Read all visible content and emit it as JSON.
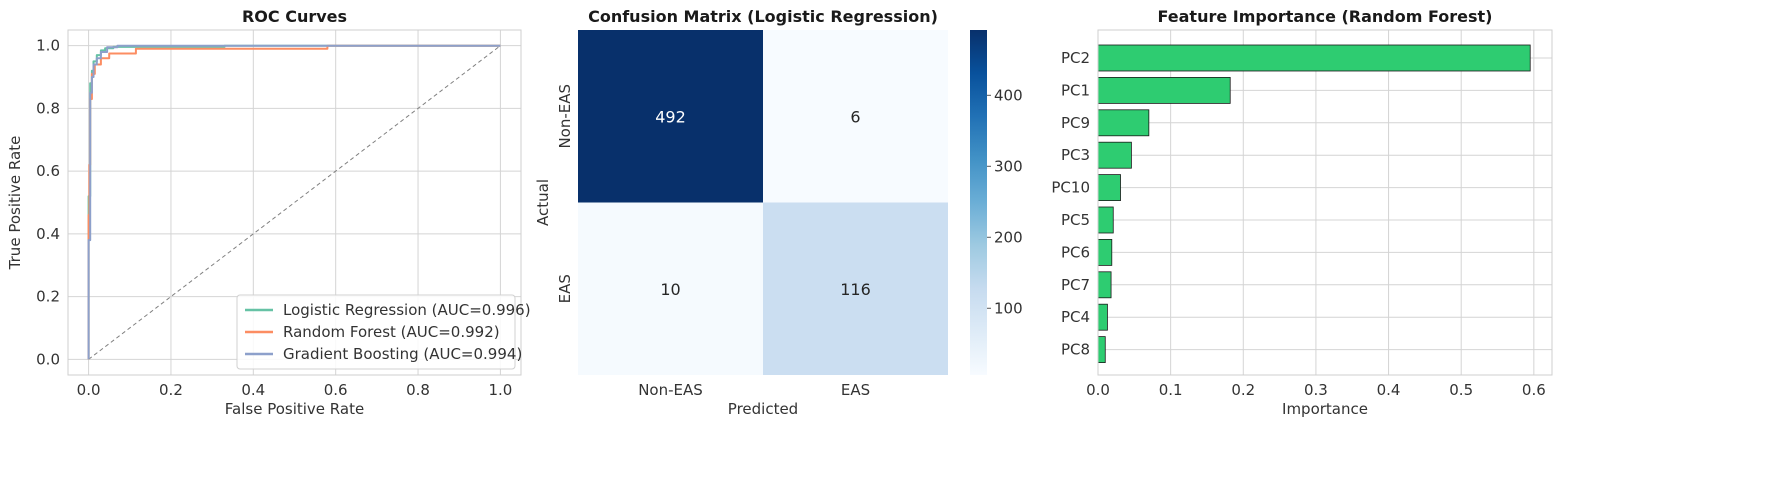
{
  "chart_data": [
    {
      "type": "line",
      "title": "ROC Curves",
      "xlabel": "False Positive Rate",
      "ylabel": "True Positive Rate",
      "xlim": [
        -0.05,
        1.05
      ],
      "ylim": [
        -0.05,
        1.05
      ],
      "xticks": [
        0.0,
        0.2,
        0.4,
        0.6,
        0.8,
        1.0
      ],
      "yticks": [
        0.0,
        0.2,
        0.4,
        0.6,
        0.8,
        1.0
      ],
      "grid": true,
      "legend_position": "lower-right",
      "series": [
        {
          "name": "Logistic Regression (AUC=0.996)",
          "color": "#66c2a5",
          "x": [
            0.0,
            0.0,
            0.004,
            0.004,
            0.008,
            0.008,
            0.012,
            0.012,
            0.02,
            0.02,
            0.03,
            0.03,
            0.04,
            0.04,
            0.06,
            0.06,
            0.33,
            0.33,
            1.0
          ],
          "y": [
            0.0,
            0.52,
            0.52,
            0.88,
            0.88,
            0.92,
            0.92,
            0.95,
            0.95,
            0.97,
            0.97,
            0.985,
            0.985,
            0.992,
            0.992,
            0.996,
            0.996,
            1.0,
            1.0
          ]
        },
        {
          "name": "Random Forest (AUC=0.992)",
          "color": "#fc8d62",
          "x": [
            0.0,
            0.0,
            0.002,
            0.002,
            0.004,
            0.004,
            0.008,
            0.008,
            0.015,
            0.015,
            0.03,
            0.03,
            0.05,
            0.05,
            0.115,
            0.115,
            0.58,
            0.58,
            1.0
          ],
          "y": [
            0.0,
            0.46,
            0.46,
            0.62,
            0.62,
            0.83,
            0.83,
            0.91,
            0.91,
            0.94,
            0.94,
            0.96,
            0.96,
            0.975,
            0.975,
            0.99,
            0.99,
            1.0,
            1.0
          ]
        },
        {
          "name": "Gradient Boosting (AUC=0.994)",
          "color": "#8da0cb",
          "x": [
            0.0,
            0.0,
            0.004,
            0.004,
            0.008,
            0.008,
            0.012,
            0.012,
            0.02,
            0.02,
            0.03,
            0.03,
            0.045,
            0.045,
            0.07,
            0.07,
            1.0
          ],
          "y": [
            0.0,
            0.38,
            0.38,
            0.85,
            0.85,
            0.9,
            0.9,
            0.94,
            0.94,
            0.96,
            0.96,
            0.98,
            0.98,
            0.995,
            0.995,
            1.0,
            1.0
          ]
        }
      ],
      "reference_line": {
        "x": [
          0,
          1
        ],
        "y": [
          0,
          1
        ],
        "color": "#808080",
        "style": "dashed"
      }
    },
    {
      "type": "heatmap",
      "title": "Confusion Matrix (Logistic Regression)",
      "xlabel": "Predicted",
      "ylabel": "Actual",
      "x_categories": [
        "Non-EAS",
        "EAS"
      ],
      "y_categories": [
        "Non-EAS",
        "EAS"
      ],
      "values": [
        [
          492,
          6
        ],
        [
          10,
          116
        ]
      ],
      "colormap": "Blues",
      "colorbar_range": [
        6,
        492
      ],
      "colorbar_ticks": [
        100,
        200,
        300,
        400
      ]
    },
    {
      "type": "bar",
      "orientation": "horizontal",
      "title": "Feature Importance (Random Forest)",
      "xlabel": "Importance",
      "ylabel": "",
      "categories": [
        "PC2",
        "PC1",
        "PC9",
        "PC3",
        "PC10",
        "PC5",
        "PC6",
        "PC7",
        "PC4",
        "PC8"
      ],
      "values": [
        0.595,
        0.182,
        0.07,
        0.046,
        0.031,
        0.021,
        0.019,
        0.018,
        0.013,
        0.01
      ],
      "xlim": [
        0,
        0.625
      ],
      "xticks": [
        0.0,
        0.1,
        0.2,
        0.3,
        0.4,
        0.5,
        0.6
      ],
      "bar_color": "#2ecc71",
      "edge_color": "#1a1a1a",
      "grid": true
    }
  ]
}
